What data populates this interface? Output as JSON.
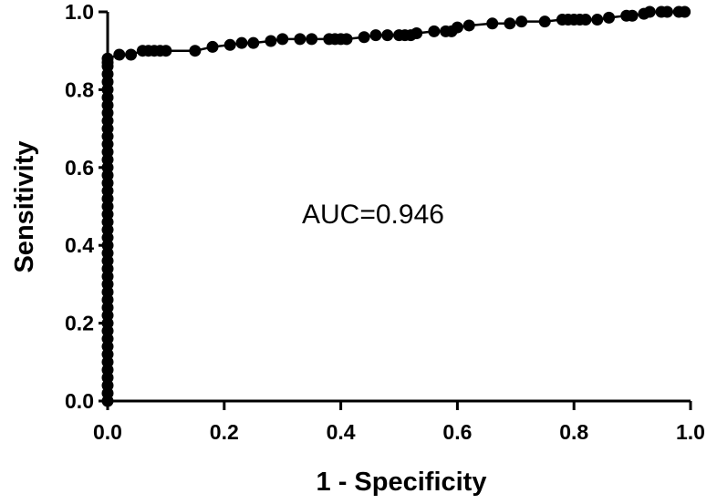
{
  "chart_data": {
    "type": "line",
    "title": "",
    "xlabel": "1 - Specificity",
    "ylabel": "Sensitivity",
    "xlim": [
      0,
      1
    ],
    "ylim": [
      0,
      1
    ],
    "xticks": [
      "0.0",
      "0.2",
      "0.4",
      "0.6",
      "0.8",
      "1.0"
    ],
    "yticks": [
      "0.0",
      "0.2",
      "0.4",
      "0.6",
      "0.8",
      "1.0"
    ],
    "grid": false,
    "legend": "none",
    "annotation": "AUC=0.946",
    "series": [
      {
        "marker": "circle",
        "color": "#000000",
        "x": [
          0,
          0,
          0,
          0,
          0,
          0,
          0,
          0,
          0,
          0,
          0,
          0,
          0,
          0,
          0,
          0,
          0,
          0,
          0,
          0,
          0,
          0,
          0,
          0,
          0,
          0,
          0,
          0,
          0,
          0,
          0,
          0,
          0,
          0,
          0,
          0,
          0,
          0,
          0,
          0,
          0,
          0,
          0,
          0,
          0,
          0,
          0.02,
          0.04,
          0.06,
          0.07,
          0.08,
          0.09,
          0.1,
          0.15,
          0.18,
          0.21,
          0.23,
          0.25,
          0.28,
          0.3,
          0.33,
          0.35,
          0.38,
          0.39,
          0.4,
          0.41,
          0.44,
          0.46,
          0.48,
          0.5,
          0.51,
          0.52,
          0.53,
          0.56,
          0.58,
          0.59,
          0.6,
          0.62,
          0.66,
          0.69,
          0.71,
          0.75,
          0.78,
          0.79,
          0.8,
          0.81,
          0.82,
          0.84,
          0.86,
          0.89,
          0.9,
          0.92,
          0.93,
          0.95,
          0.96,
          0.98,
          0.99
        ],
        "y": [
          0,
          0.02,
          0.04,
          0.06,
          0.08,
          0.1,
          0.12,
          0.14,
          0.16,
          0.18,
          0.2,
          0.22,
          0.24,
          0.26,
          0.28,
          0.3,
          0.32,
          0.34,
          0.36,
          0.38,
          0.4,
          0.42,
          0.44,
          0.46,
          0.48,
          0.5,
          0.52,
          0.54,
          0.56,
          0.58,
          0.6,
          0.62,
          0.64,
          0.66,
          0.68,
          0.7,
          0.72,
          0.74,
          0.76,
          0.78,
          0.8,
          0.82,
          0.84,
          0.86,
          0.87,
          0.88,
          0.89,
          0.89,
          0.9,
          0.9,
          0.9,
          0.9,
          0.9,
          0.9,
          0.91,
          0.915,
          0.92,
          0.92,
          0.925,
          0.93,
          0.93,
          0.93,
          0.93,
          0.93,
          0.93,
          0.93,
          0.935,
          0.94,
          0.94,
          0.94,
          0.94,
          0.94,
          0.945,
          0.95,
          0.95,
          0.95,
          0.96,
          0.965,
          0.97,
          0.97,
          0.975,
          0.975,
          0.98,
          0.98,
          0.98,
          0.98,
          0.98,
          0.98,
          0.985,
          0.99,
          0.99,
          0.995,
          1.0,
          1.0,
          1.0,
          1.0,
          1.0
        ]
      }
    ]
  }
}
